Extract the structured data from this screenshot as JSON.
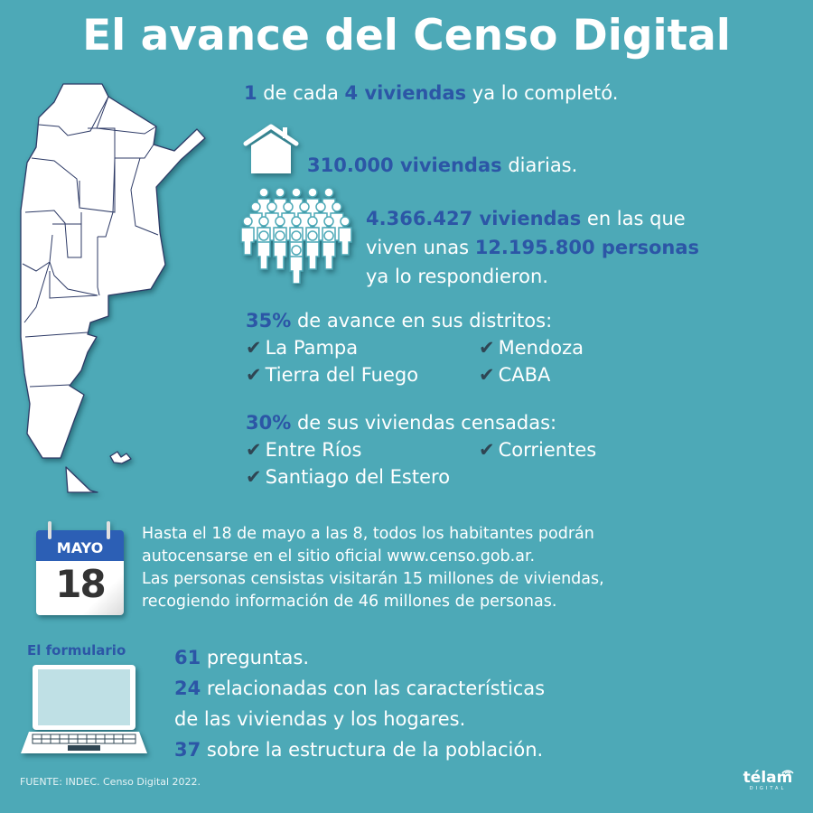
{
  "title": "El avance del Censo Digital",
  "colors": {
    "background": "#4da9b7",
    "accent": "#2c56a6",
    "text": "#ffffff",
    "check": "#2f4553"
  },
  "stat1": {
    "n1": "1",
    "t1": " de cada ",
    "n2": "4 viviendas",
    "t2": " ya lo completó."
  },
  "stat2": {
    "icon": "house-icon",
    "n": "310.000 viviendas",
    "t": " diarias."
  },
  "stat3": {
    "icon": "people-group-icon",
    "n1": "4.366.427 viviendas",
    "t1": " en las que",
    "t2": "viven unas ",
    "n2": "12.195.800 personas",
    "t3": "ya lo respondieron."
  },
  "districts35": {
    "pct": "35%",
    "label": " de avance en sus distritos:",
    "items": [
      "La Pampa",
      "Mendoza",
      "Tierra del Fuego",
      "CABA"
    ]
  },
  "districts30": {
    "pct": "30%",
    "label": " de sus viviendas censadas:",
    "items": [
      "Entre Ríos",
      "Corrientes",
      "Santiago del Estero"
    ]
  },
  "calendar": {
    "month": "MAYO",
    "day": "18"
  },
  "paragraph": [
    "Hasta el 18 de mayo a las 8, todos los habitantes podrán",
    "autocensarse en el sitio oficial www.censo.gob.ar.",
    "Las personas censistas visitarán 15 millones de viviendas,",
    "recogiendo información de 46 millones de personas."
  ],
  "form": {
    "label": "El formulario",
    "l1n": "61",
    "l1t": " preguntas.",
    "l2n": "24",
    "l2t": " relacionadas con las características",
    "l3t": "de las viviendas y los hogares.",
    "l4n": "37",
    "l4t": " sobre la estructura de la población."
  },
  "footer": "FUENTE: INDEC. Censo Digital 2022.",
  "logo": {
    "name": "télam",
    "sub": "DIGITAL"
  }
}
